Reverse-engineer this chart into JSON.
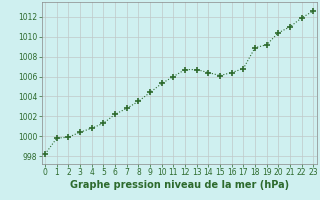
{
  "x": [
    0,
    1,
    2,
    3,
    4,
    5,
    6,
    7,
    8,
    9,
    10,
    11,
    12,
    13,
    14,
    15,
    16,
    17,
    18,
    19,
    20,
    21,
    22,
    23
  ],
  "y": [
    998.2,
    999.8,
    999.9,
    1000.4,
    1000.8,
    1001.3,
    1002.2,
    1002.8,
    1003.5,
    1004.4,
    1005.3,
    1006.0,
    1006.7,
    1006.7,
    1006.4,
    1006.1,
    1006.4,
    1006.8,
    1008.9,
    1009.2,
    1010.4,
    1011.0,
    1011.9,
    1012.6
  ],
  "line_color": "#2d6a2d",
  "marker": "+",
  "marker_size": 4,
  "line_width": 0.8,
  "bg_color": "#cff0f0",
  "grid_color": "#c0c8c8",
  "xlabel": "Graphe pression niveau de la mer (hPa)",
  "xlabel_fontsize": 7,
  "xlabel_color": "#2d6a2d",
  "ytick_labels": [
    "998",
    "1000",
    "1002",
    "1004",
    "1006",
    "1008",
    "1010",
    "1012"
  ],
  "ytick_vals": [
    998,
    1000,
    1002,
    1004,
    1006,
    1008,
    1010,
    1012
  ],
  "xticks": [
    0,
    1,
    2,
    3,
    4,
    5,
    6,
    7,
    8,
    9,
    10,
    11,
    12,
    13,
    14,
    15,
    16,
    17,
    18,
    19,
    20,
    21,
    22,
    23
  ],
  "ylim": [
    997.2,
    1013.5
  ],
  "xlim": [
    -0.3,
    23.3
  ],
  "tick_fontsize": 5.5,
  "tick_color": "#2d6a2d",
  "marker_edge_color": "#2d6a2d"
}
